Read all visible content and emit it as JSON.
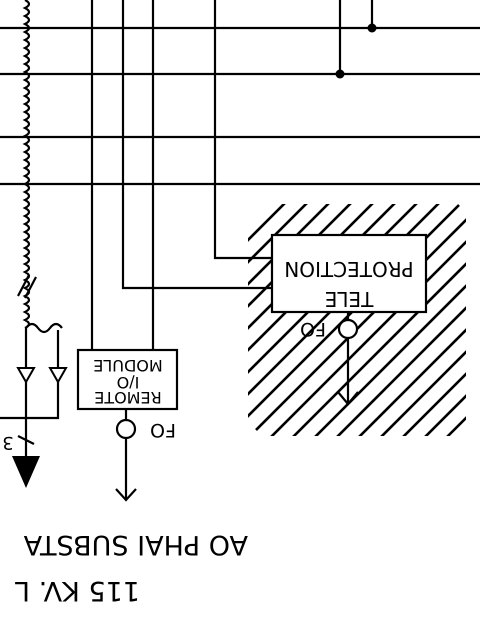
{
  "modules": {
    "tele_protection": {
      "line1": "TELE",
      "line2": "PROTECTION"
    },
    "remote_io": {
      "line1": "REMOTE",
      "line2": "I/O",
      "line3": "MODULE"
    }
  },
  "ports": {
    "fo_tele": "FO",
    "fo_remote": "FO"
  },
  "marker": {
    "ct_ratio": "3"
  },
  "substation": {
    "name": "AO PHAI SUBSTA",
    "line": "115 KV. L"
  }
}
